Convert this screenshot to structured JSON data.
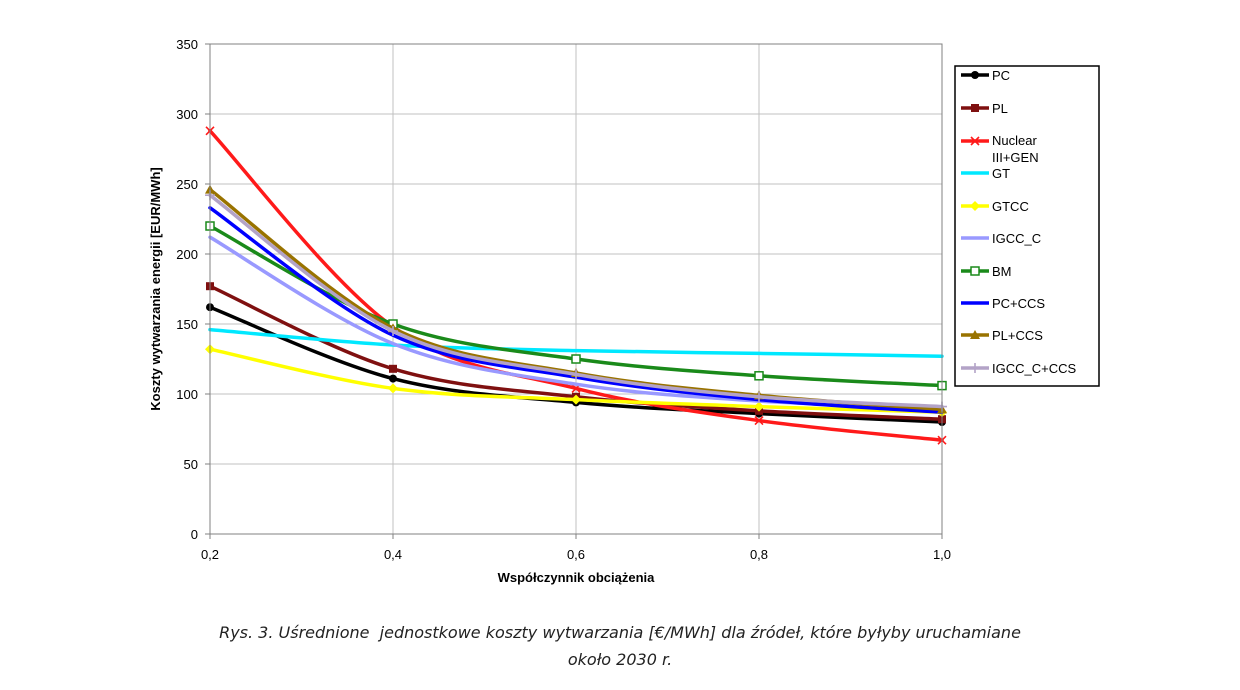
{
  "chart_data": {
    "type": "line",
    "xlabel": "Współczynnik obciążenia",
    "ylabel": "Koszty wytwarzania energii [EUR/MWh]",
    "x": [
      0.2,
      0.4,
      0.6,
      0.8,
      1.0
    ],
    "x_tick_labels": [
      "0,2",
      "0,4",
      "0,6",
      "0,8",
      "1,0"
    ],
    "xlim": [
      0.2,
      1.0
    ],
    "ylim": [
      0,
      350
    ],
    "y_ticks": [
      0,
      50,
      100,
      150,
      200,
      250,
      300,
      350
    ],
    "grid": true,
    "legend_position": "right",
    "series": [
      {
        "name": "PC",
        "values": [
          162,
          111,
          94,
          86,
          80
        ],
        "color": "#000000",
        "marker": "circle"
      },
      {
        "name": "PL",
        "values": [
          177,
          118,
          98,
          88,
          82
        ],
        "color": "#7f1010",
        "marker": "square"
      },
      {
        "name": "Nuclear III+GEN",
        "values": [
          288,
          148,
          104,
          81,
          67
        ],
        "color": "#ff1a1a",
        "marker": "x"
      },
      {
        "name": "GT",
        "values": [
          146,
          135,
          131,
          129,
          127
        ],
        "color": "#00e8ff",
        "marker": "none"
      },
      {
        "name": "GTCC",
        "values": [
          132,
          104,
          96,
          91,
          87
        ],
        "color": "#ffff00",
        "marker": "diamond"
      },
      {
        "name": "IGCC_C",
        "values": [
          212,
          136,
          107,
          95,
          90
        ],
        "color": "#9999ff",
        "marker": "none"
      },
      {
        "name": "BM",
        "values": [
          220,
          150,
          125,
          113,
          106
        ],
        "color": "#1a8a1a",
        "marker": "square-open"
      },
      {
        "name": "PC+CCS",
        "values": [
          233,
          142,
          112,
          96,
          87
        ],
        "color": "#0000ff",
        "marker": "none"
      },
      {
        "name": "PL+CCS",
        "values": [
          246,
          147,
          115,
          99,
          89
        ],
        "color": "#997300",
        "marker": "triangle"
      },
      {
        "name": "IGCC_C+CCS",
        "values": [
          242,
          145,
          114,
          98,
          91
        ],
        "color": "#b3a3c7",
        "marker": "plus"
      }
    ]
  },
  "caption": {
    "line1": "Rys. 3. Uśrednione  jednostkowe koszty wytwarzania [€/MWh] dla źródeł, które byłyby uruchamiane",
    "line2": "około 2030 r."
  }
}
